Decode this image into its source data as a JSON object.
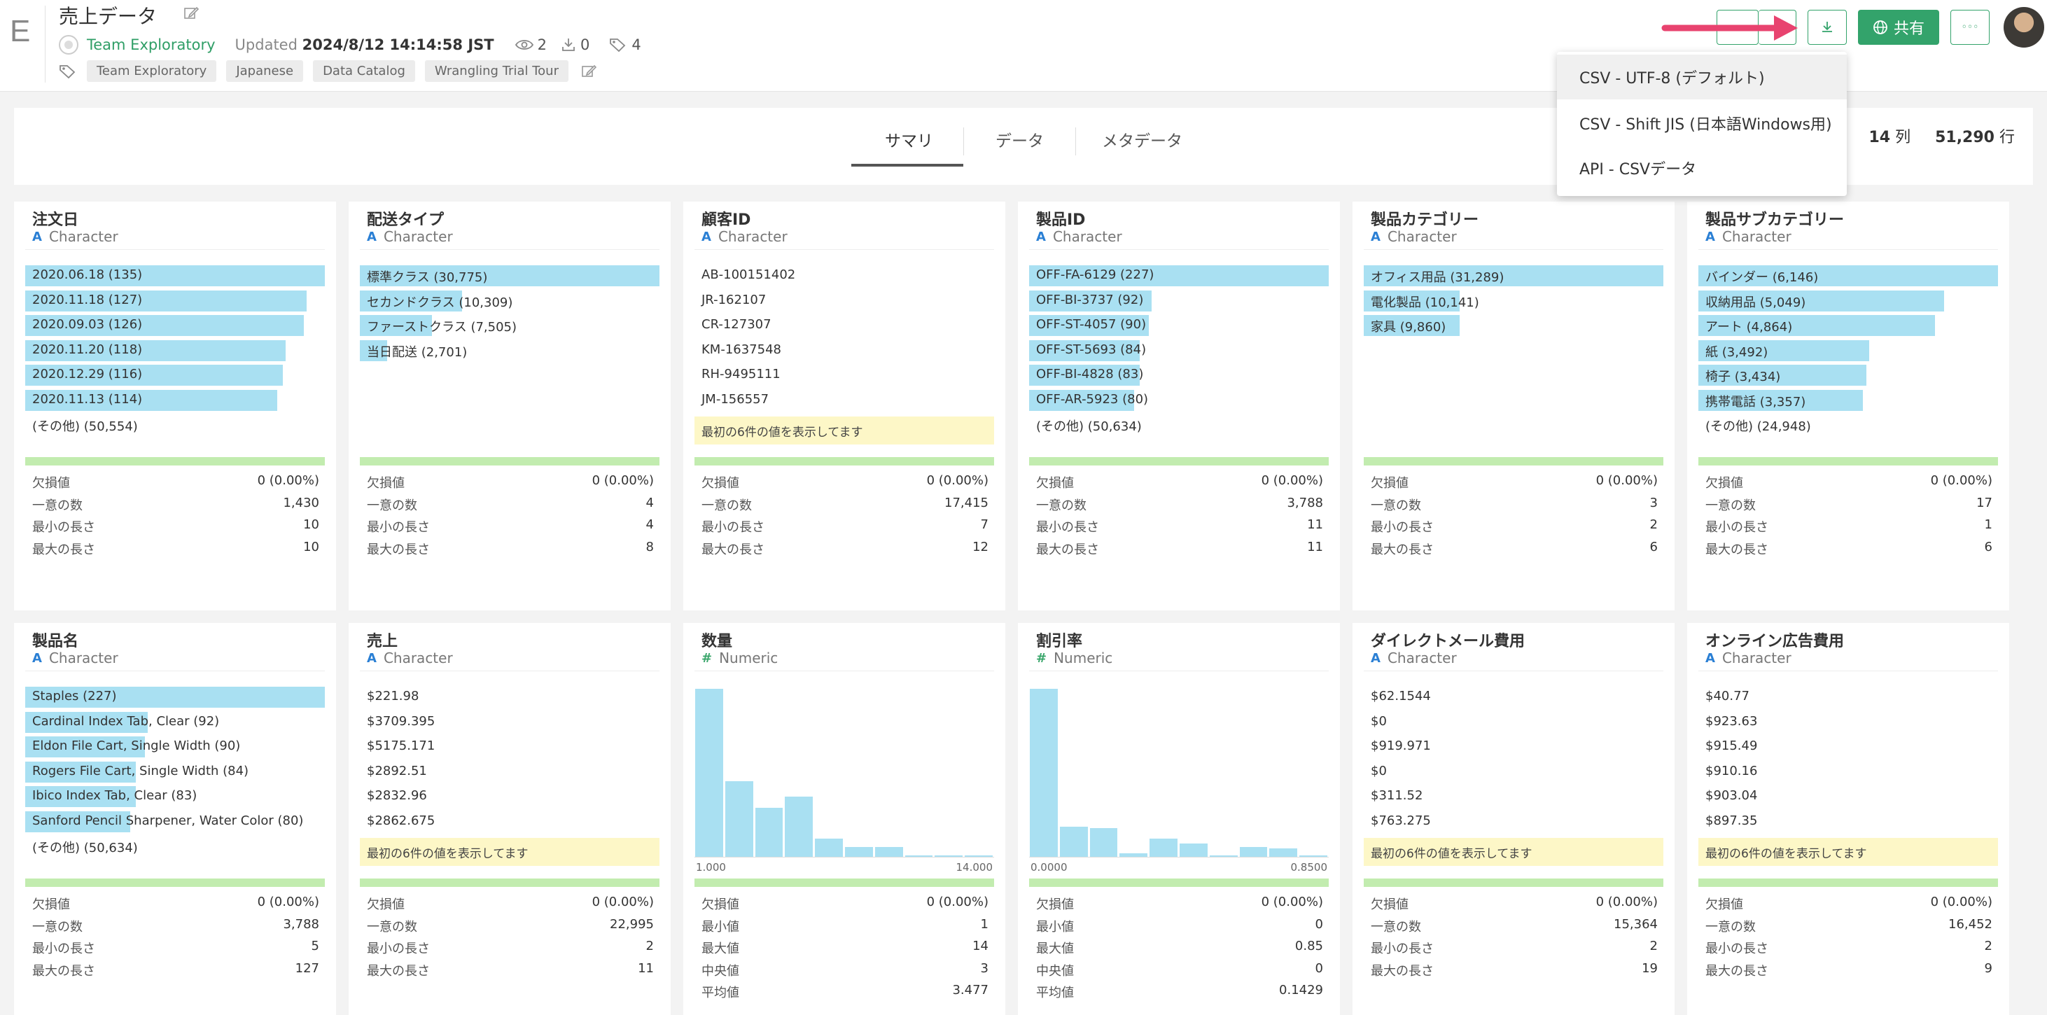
{
  "header": {
    "logo_letter": "E",
    "title": "売上データ",
    "team_name": "Team Exploratory",
    "updated_label": "Updated",
    "updated_value": "2024/8/12 14:14:58 JST",
    "views": "2",
    "downloads": "0",
    "tags_count": "4",
    "tags": [
      "Team Exploratory",
      "Japanese",
      "Data Catalog",
      "Wrangling Trial Tour"
    ],
    "share_label": "共有",
    "more_label": "◦◦◦"
  },
  "download_menu": {
    "items": [
      "CSV - UTF-8 (デフォルト)",
      "CSV - Shift JIS (日本語Windows用)",
      "API - CSVデータ"
    ]
  },
  "tabs": [
    "サマリ",
    "データ",
    "メタデータ"
  ],
  "summary": {
    "columns_count": "14",
    "columns_unit": "列",
    "rows_count": "51,290",
    "rows_unit": "行"
  },
  "colors": {
    "accent_green": "#33a36b",
    "bar_blue": "#a9e0f2",
    "note_yellow": "#fdf7c7",
    "quality_green": "#c2ecaf",
    "arrow_pink": "#e8436f"
  },
  "stat_labels": {
    "missing": "欠損値",
    "unique": "一意の数",
    "min_len": "最小の長さ",
    "max_len": "最大の長さ",
    "min": "最小値",
    "max": "最大値",
    "median": "中央値",
    "mean": "平均値"
  },
  "note_text": "最初の6件の値を表示してます",
  "cards": [
    {
      "name": "注文日",
      "type": "Character",
      "bars": [
        {
          "label": "2020.06.18 (135)",
          "fraction": 1.0
        },
        {
          "label": "2020.11.18 (127)",
          "fraction": 0.94
        },
        {
          "label": "2020.09.03 (126)",
          "fraction": 0.93
        },
        {
          "label": "2020.11.20 (118)",
          "fraction": 0.87
        },
        {
          "label": "2020.12.29 (116)",
          "fraction": 0.86
        },
        {
          "label": "2020.11.13 (114)",
          "fraction": 0.84
        }
      ],
      "other": "(その他) (50,554)",
      "stats": {
        "missing": "0 (0.00%)",
        "unique": "1,430",
        "min_len": "10",
        "max_len": "10"
      }
    },
    {
      "name": "配送タイプ",
      "type": "Character",
      "bars": [
        {
          "label": "標準クラス (30,775)",
          "fraction": 1.0
        },
        {
          "label": "セカンドクラス (10,309)",
          "fraction": 0.34
        },
        {
          "label": "ファーストクラス (7,505)",
          "fraction": 0.24
        },
        {
          "label": "当日配送 (2,701)",
          "fraction": 0.09
        }
      ],
      "stats": {
        "missing": "0 (0.00%)",
        "unique": "4",
        "min_len": "4",
        "max_len": "8"
      }
    },
    {
      "name": "顧客ID",
      "type": "Character",
      "values": [
        "AB-100151402",
        "JR-162107",
        "CR-127307",
        "KM-1637548",
        "RH-9495111",
        "JM-156557"
      ],
      "stats": {
        "missing": "0 (0.00%)",
        "unique": "17,415",
        "min_len": "7",
        "max_len": "12"
      }
    },
    {
      "name": "製品ID",
      "type": "Character",
      "bars": [
        {
          "label": "OFF-FA-6129 (227)",
          "fraction": 1.0
        },
        {
          "label": "OFF-BI-3737 (92)",
          "fraction": 0.41
        },
        {
          "label": "OFF-ST-4057 (90)",
          "fraction": 0.4
        },
        {
          "label": "OFF-ST-5693 (84)",
          "fraction": 0.37
        },
        {
          "label": "OFF-BI-4828 (83)",
          "fraction": 0.37
        },
        {
          "label": "OFF-AR-5923 (80)",
          "fraction": 0.35
        }
      ],
      "other": "(その他) (50,634)",
      "stats": {
        "missing": "0 (0.00%)",
        "unique": "3,788",
        "min_len": "11",
        "max_len": "11"
      }
    },
    {
      "name": "製品カテゴリー",
      "type": "Character",
      "bars": [
        {
          "label": "オフィス用品 (31,289)",
          "fraction": 1.0
        },
        {
          "label": "電化製品 (10,141)",
          "fraction": 0.32
        },
        {
          "label": "家具 (9,860)",
          "fraction": 0.32
        }
      ],
      "stats": {
        "missing": "0 (0.00%)",
        "unique": "3",
        "min_len": "2",
        "max_len": "6"
      }
    },
    {
      "name": "製品サブカテゴリー",
      "type": "Character",
      "bars": [
        {
          "label": "バインダー (6,146)",
          "fraction": 1.0
        },
        {
          "label": "収納用品 (5,049)",
          "fraction": 0.82
        },
        {
          "label": "アート (4,864)",
          "fraction": 0.79
        },
        {
          "label": "紙 (3,492)",
          "fraction": 0.57
        },
        {
          "label": "椅子 (3,434)",
          "fraction": 0.56
        },
        {
          "label": "携帯電話 (3,357)",
          "fraction": 0.55
        }
      ],
      "other": "(その他) (24,948)",
      "stats": {
        "missing": "0 (0.00%)",
        "unique": "17",
        "min_len": "1",
        "max_len": "6"
      }
    },
    {
      "name": "製品名",
      "type": "Character",
      "bars": [
        {
          "label": "Staples (227)",
          "fraction": 1.0
        },
        {
          "label": "Cardinal Index Tab, Clear (92)",
          "fraction": 0.41
        },
        {
          "label": "Eldon File Cart, Single Width (90)",
          "fraction": 0.4
        },
        {
          "label": "Rogers File Cart, Single Width (84)",
          "fraction": 0.37
        },
        {
          "label": "Ibico Index Tab, Clear (83)",
          "fraction": 0.37
        },
        {
          "label": "Sanford Pencil Sharpener, Water Color (80)",
          "fraction": 0.35
        }
      ],
      "other": "(その他) (50,634)",
      "stats": {
        "missing": "0 (0.00%)",
        "unique": "3,788",
        "min_len": "5",
        "max_len": "127"
      }
    },
    {
      "name": "売上",
      "type": "Character",
      "values": [
        "$221.98",
        "$3709.395",
        "$5175.171",
        "$2892.51",
        "$2832.96",
        "$2862.675"
      ],
      "stats": {
        "missing": "0 (0.00%)",
        "unique": "22,995",
        "min_len": "2",
        "max_len": "11"
      }
    },
    {
      "name": "数量",
      "type": "Numeric",
      "histogram": {
        "values": [
          1.0,
          0.45,
          0.29,
          0.36,
          0.11,
          0.06,
          0.06,
          0.01,
          0.01,
          0.01
        ],
        "x_min": "1.000",
        "x_max": "14.000"
      },
      "stats": {
        "missing": "0 (0.00%)",
        "min": "1",
        "max": "14",
        "median": "3",
        "mean": "3.477"
      }
    },
    {
      "name": "割引率",
      "type": "Numeric",
      "histogram": {
        "values": [
          1.0,
          0.18,
          0.17,
          0.02,
          0.11,
          0.08,
          0.005,
          0.06,
          0.05,
          0.01
        ],
        "x_min": "0.0000",
        "x_max": "0.8500"
      },
      "stats": {
        "missing": "0 (0.00%)",
        "min": "0",
        "max": "0.85",
        "median": "0",
        "mean": "0.1429"
      }
    },
    {
      "name": "ダイレクトメール費用",
      "type": "Character",
      "values": [
        "$62.1544",
        "$0",
        "$919.971",
        "$0",
        "$311.52",
        "$763.275"
      ],
      "stats": {
        "missing": "0 (0.00%)",
        "unique": "15,364",
        "min_len": "2",
        "max_len": "19"
      }
    },
    {
      "name": "オンライン広告費用",
      "type": "Character",
      "values": [
        "$40.77",
        "$923.63",
        "$915.49",
        "$910.16",
        "$903.04",
        "$897.35"
      ],
      "stats": {
        "missing": "0 (0.00%)",
        "unique": "16,452",
        "min_len": "2",
        "max_len": "9"
      }
    }
  ]
}
